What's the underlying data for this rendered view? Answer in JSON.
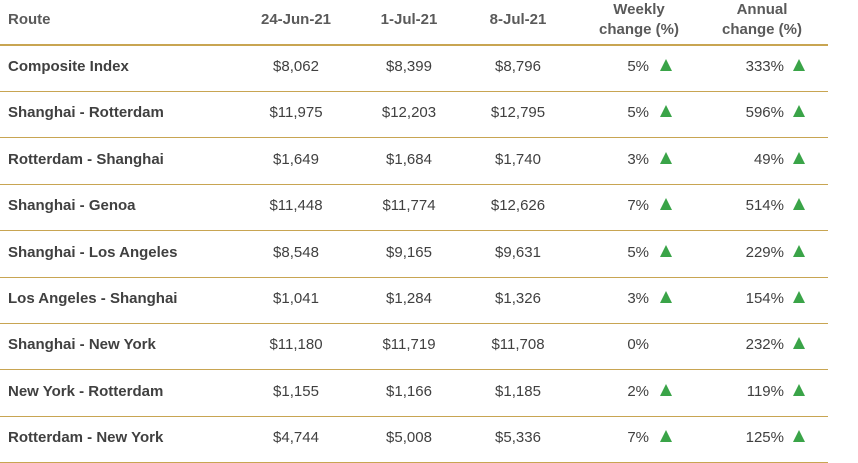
{
  "columns": {
    "route": "Route",
    "d1": "24-Jun-21",
    "d2": "1-Jul-21",
    "d3": "8-Jul-21",
    "weekly_line1": "Weekly",
    "weekly_line2": "change (%)",
    "annual_line1": "Annual",
    "annual_line2": "change (%)"
  },
  "colors": {
    "rule": "#c8a552",
    "up_arrow": "#3aa448",
    "text": "#404040"
  },
  "rows": [
    {
      "route": "Composite Index",
      "d1": "$8,062",
      "d2": "$8,399",
      "d3": "$8,796",
      "weekly": "5%",
      "weekly_arrow": "up",
      "annual": "333%",
      "annual_arrow": "up"
    },
    {
      "route": "Shanghai - Rotterdam",
      "d1": "$11,975",
      "d2": "$12,203",
      "d3": "$12,795",
      "weekly": "5%",
      "weekly_arrow": "up",
      "annual": "596%",
      "annual_arrow": "up"
    },
    {
      "route": "Rotterdam - Shanghai",
      "d1": "$1,649",
      "d2": "$1,684",
      "d3": "$1,740",
      "weekly": "3%",
      "weekly_arrow": "up",
      "annual": "49%",
      "annual_arrow": "up"
    },
    {
      "route": "Shanghai - Genoa",
      "d1": "$11,448",
      "d2": "$11,774",
      "d3": "$12,626",
      "weekly": "7%",
      "weekly_arrow": "up",
      "annual": "514%",
      "annual_arrow": "up"
    },
    {
      "route": "Shanghai - Los Angeles",
      "d1": "$8,548",
      "d2": "$9,165",
      "d3": "$9,631",
      "weekly": "5%",
      "weekly_arrow": "up",
      "annual": "229%",
      "annual_arrow": "up"
    },
    {
      "route": "Los Angeles - Shanghai",
      "d1": "$1,041",
      "d2": "$1,284",
      "d3": "$1,326",
      "weekly": "3%",
      "weekly_arrow": "up",
      "annual": "154%",
      "annual_arrow": "up"
    },
    {
      "route": "Shanghai - New York",
      "d1": "$11,180",
      "d2": "$11,719",
      "d3": "$11,708",
      "weekly": "0%",
      "weekly_arrow": "none",
      "annual": "232%",
      "annual_arrow": "up"
    },
    {
      "route": "New York - Rotterdam",
      "d1": "$1,155",
      "d2": "$1,166",
      "d3": "$1,185",
      "weekly": "2%",
      "weekly_arrow": "up",
      "annual": "119%",
      "annual_arrow": "up"
    },
    {
      "route": "Rotterdam - New York",
      "d1": "$4,744",
      "d2": "$5,008",
      "d3": "$5,336",
      "weekly": "7%",
      "weekly_arrow": "up",
      "annual": "125%",
      "annual_arrow": "up"
    }
  ]
}
